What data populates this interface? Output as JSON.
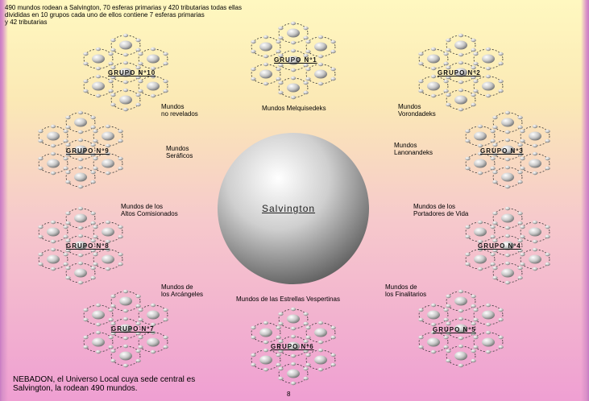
{
  "intro": "490 mundos rodean a Salvington, 70 esferas primarias y 420 tributarias todas ellas\ndivididas en 10 grupos cada uno de ellos contiene 7 esferas primarias\ny 42 tributarias",
  "center": "Salvington",
  "groups": [
    "GRUPO Nº1",
    "GRUPO Nº2",
    "GRUPO Nº3",
    "GRUPO Nº4",
    "GRUPO Nº5",
    "GRUPO Nº6",
    "GRUPO Nº7",
    "GRUPO Nº8",
    "GRUPO Nº9",
    "GRUPO Nº10"
  ],
  "labels": {
    "melquisedeks": "Mundos Melquisedeks",
    "vorondadeks": "Mundos\nVorondadeks",
    "lanonandeks": "Mundos\nLanonandeks",
    "portadores": "Mundos de los\nPortadores de Vida",
    "finalitarios": "Mundos de\nlos Finalitarios",
    "estrellas": "Mundos de las Estrellas Vespertinas",
    "arcangeles": "Mundos de\nlos Arcángeles",
    "altos": "Mundos de los\nAltos Comisionados",
    "seraficos": "Mundos\nSeráficos",
    "no_revelados": "Mundos\nno revelados"
  },
  "footer": "NEBADON, el Universo Local cuya sede central es\nSalvington, la rodean 490 mundos.",
  "page_number": "8",
  "colors": {
    "sphere_light": "#ffffff",
    "sphere_dark": "#6f6f6f",
    "orbit": "#333333"
  }
}
